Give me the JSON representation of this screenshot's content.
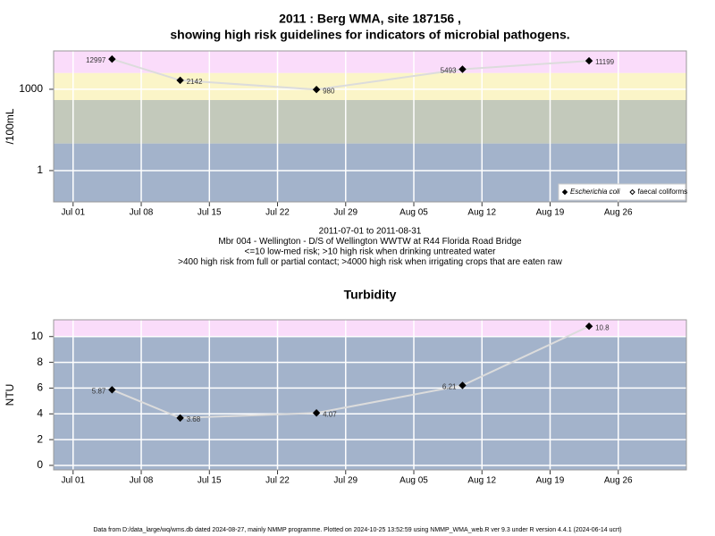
{
  "chart_data": [
    {
      "type": "line",
      "title": "2011 : Berg WMA, site 187156 ,",
      "subtitle": "showing high risk guidelines for indicators of microbial pathogens.",
      "y_label": "/100mL",
      "log_scale": true,
      "x": [
        "2011-07-05",
        "2011-07-12",
        "2011-07-26",
        "2011-08-10",
        "2011-08-23"
      ],
      "xlim": [
        "2011-06-29",
        "2011-09-02"
      ],
      "xticks": [
        {
          "value": "2011-07-01",
          "label": "Jul 01"
        },
        {
          "value": "2011-07-08",
          "label": "Jul 08"
        },
        {
          "value": "2011-07-15",
          "label": "Jul 15"
        },
        {
          "value": "2011-07-22",
          "label": "Jul 22"
        },
        {
          "value": "2011-07-29",
          "label": "Jul 29"
        },
        {
          "value": "2011-08-05",
          "label": "Aug 05"
        },
        {
          "value": "2011-08-12",
          "label": "Aug 12"
        },
        {
          "value": "2011-08-19",
          "label": "Aug 19"
        },
        {
          "value": "2011-08-26",
          "label": "Aug 26"
        }
      ],
      "ylim": [
        0.07,
        26000
      ],
      "yticks": [
        1,
        1000
      ],
      "thresholds": [
        10,
        400,
        4000
      ],
      "band_colors": [
        "#a3b3cb",
        "#c3c9bb",
        "#fbf5c8",
        "#fadcfa"
      ],
      "grid": true,
      "legend": "bottom-right",
      "series": [
        {
          "name": "Escherichia coli",
          "color": "#000000",
          "line_color": "#dcdcdc",
          "marker": "filled",
          "values": [
            12997,
            2142,
            980,
            5493,
            11199
          ]
        },
        {
          "name": "faecal coliforms",
          "color": "#000000",
          "line_color": "#dcdcdc",
          "marker": "open",
          "values": [
            null,
            null,
            null,
            null,
            null
          ]
        }
      ],
      "annotations": [
        "2011-07-01 to 2011-08-31",
        "Mbr 004 - Wellington - D/S of Wellington WWTW at R44 Florida Road Bridge",
        "<=10 low-med risk; >10 high risk when drinking untreated water",
        ">400 high risk from full or partial contact; >4000 high risk when irrigating crops that are eaten raw"
      ]
    },
    {
      "type": "line",
      "title": "Turbidity",
      "y_label": "NTU",
      "log_scale": false,
      "x": [
        "2011-07-05",
        "2011-07-12",
        "2011-07-26",
        "2011-08-10",
        "2011-08-23"
      ],
      "xlim": [
        "2011-06-29",
        "2011-09-02"
      ],
      "xticks": [
        {
          "value": "2011-07-01",
          "label": "Jul 01"
        },
        {
          "value": "2011-07-08",
          "label": "Jul 08"
        },
        {
          "value": "2011-07-15",
          "label": "Jul 15"
        },
        {
          "value": "2011-07-22",
          "label": "Jul 22"
        },
        {
          "value": "2011-07-29",
          "label": "Jul 29"
        },
        {
          "value": "2011-08-05",
          "label": "Aug 05"
        },
        {
          "value": "2011-08-12",
          "label": "Aug 12"
        },
        {
          "value": "2011-08-19",
          "label": "Aug 19"
        },
        {
          "value": "2011-08-26",
          "label": "Aug 26"
        }
      ],
      "ylim": [
        -0.35,
        11.3
      ],
      "yticks": [
        0,
        2,
        4,
        6,
        8,
        10
      ],
      "thresholds": [
        10
      ],
      "band_colors": [
        "#a3b3cb",
        "#fadcfa"
      ],
      "grid": true,
      "series": [
        {
          "name": "Turbidity",
          "color": "#000000",
          "line_color": "#dcdcdc",
          "marker": "filled",
          "values": [
            5.87,
            3.68,
            4.07,
            6.21,
            10.8
          ]
        }
      ]
    }
  ],
  "footer": "Data from D:/data_large/wq/wms.db dated 2024-08-27, mainly NMMP programme. Plotted on 2024-10-25 13:52:59 using NMMP_WMA_web.R ver 9.3 under R version 4.4.1 (2024-06-14 ucrt)"
}
